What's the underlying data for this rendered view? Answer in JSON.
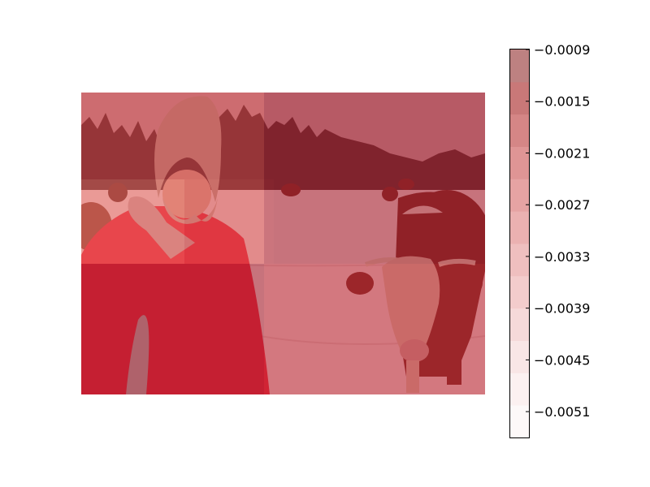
{
  "chart_data": {
    "type": "heatmap",
    "title": "",
    "xlabel": "",
    "ylabel": "",
    "background_image_description_tags": [],
    "overlay_colormap": "Reds",
    "overlay_alpha": 0.5,
    "grid": {
      "rows": 3,
      "cols": 4,
      "cells": [
        {
          "row": 0,
          "col": 0,
          "value": -0.0021
        },
        {
          "row": 0,
          "col": 1,
          "value": -0.0021
        },
        {
          "row": 0,
          "col": 2,
          "value": -0.0009
        },
        {
          "row": 0,
          "col": 3,
          "value": -0.0009
        },
        {
          "row": 1,
          "col": 0,
          "value": -0.003
        },
        {
          "row": 1,
          "col": 1,
          "value": -0.0024
        },
        {
          "row": 1,
          "col": 2,
          "value": -0.0011
        },
        {
          "row": 1,
          "col": 3,
          "value": -0.0009
        },
        {
          "row": 2,
          "col": 0,
          "value": -0.0009
        },
        {
          "row": 2,
          "col": 1,
          "value": -0.0009
        },
        {
          "row": 2,
          "col": 2,
          "value": -0.0015
        },
        {
          "row": 2,
          "col": 3,
          "value": -0.0015
        }
      ]
    },
    "colorbar": {
      "vmin": -0.0054,
      "vmax": -0.0009,
      "ticks": [
        -0.0009,
        -0.0015,
        -0.0021,
        -0.0027,
        -0.0033,
        -0.0039,
        -0.0045,
        -0.0051
      ],
      "tick_labels": [
        "−0.0009",
        "−0.0015",
        "−0.0021",
        "−0.0027",
        "−0.0033",
        "−0.0039",
        "−0.0045",
        "−0.0051"
      ],
      "band_colors": [
        "#fdf9f9",
        "#fcf1f1",
        "#f9e6e6",
        "#f6d9d9",
        "#f3cccc",
        "#efbfbf",
        "#ebb1b1",
        "#e6a3a3",
        "#df9595",
        "#d58686",
        "#c97878",
        "#bd8181"
      ]
    }
  },
  "colors": {
    "sky": "#c9a0a8",
    "forest": "#5a3338",
    "snow": "#e9d3d6",
    "jacket": "#e52a43",
    "hat": "#b89a92",
    "cow_body": "#7a2f2d",
    "cow_face": "#d7b6a9"
  }
}
